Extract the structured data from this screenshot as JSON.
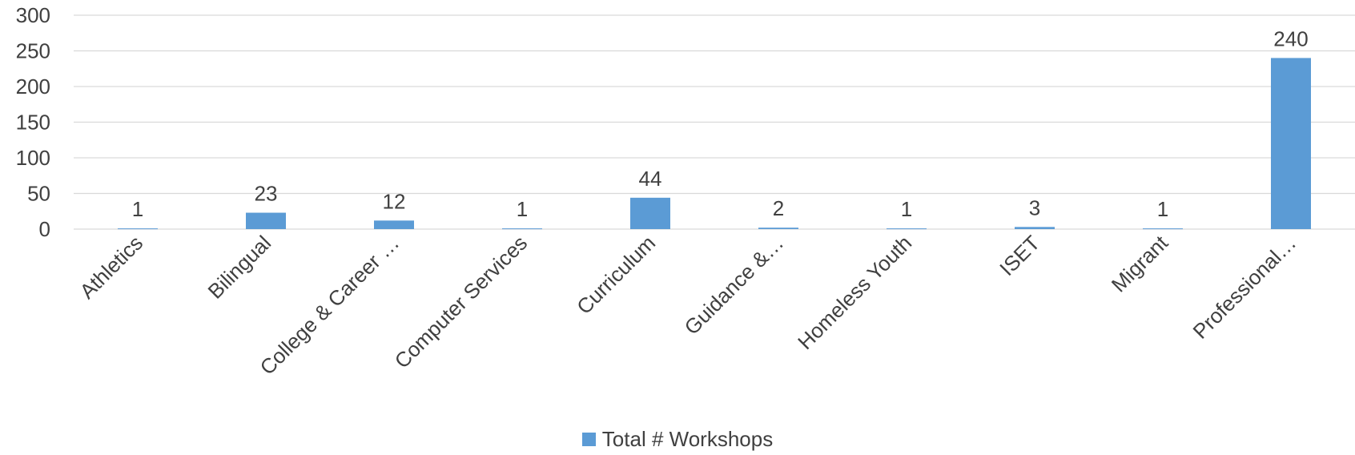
{
  "chart_data": {
    "type": "bar",
    "title": "",
    "xlabel": "",
    "ylabel": "",
    "categories": [
      "Athletics",
      "Bilingual",
      "College & Career …",
      "Computer Services",
      "Curriculum",
      "Guidance &…",
      "Homeless Youth",
      "ISET",
      "Migrant",
      "Professional…"
    ],
    "series": [
      {
        "name": "Total # Workshops",
        "values": [
          1,
          23,
          12,
          1,
          44,
          2,
          1,
          3,
          1,
          240
        ]
      }
    ],
    "data_labels": [
      "1",
      "23",
      "12",
      "1",
      "44",
      "2",
      "1",
      "3",
      "1",
      "240"
    ],
    "yticks": [
      "0",
      "50",
      "100",
      "150",
      "200",
      "250",
      "300"
    ],
    "ytick_values": [
      0,
      50,
      100,
      150,
      200,
      250,
      300
    ],
    "ylim": [
      0,
      300
    ],
    "grid": true,
    "legend_position": "bottom",
    "colors": {
      "bar": "#5b9bd5",
      "grid": "#d9d9d9",
      "text": "#404040"
    }
  },
  "legend": {
    "label": "Total # Workshops"
  }
}
